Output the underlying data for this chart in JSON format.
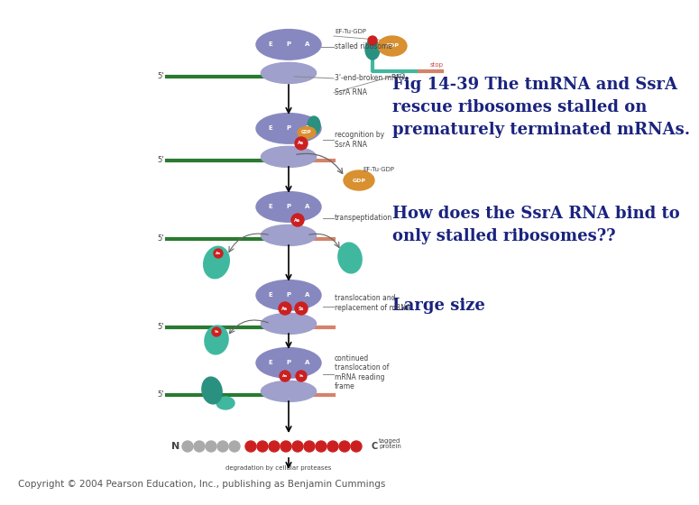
{
  "background_color": "#ffffff",
  "title_text": "Fig 14-39 The tmRNA and SsrA\nrescue ribosomes stalled on\nprematurely terminated mRNAs.",
  "question_text": "How does the SsrA RNA bind to\nonly stalled ribosomes??",
  "answer_text": "Large size",
  "copyright_text": "Copyright © 2004 Pearson Education, Inc., publishing as Benjamin Cummings",
  "title_color": "#1a237e",
  "question_color": "#1a237e",
  "answer_color": "#1a237e",
  "copyright_color": "#555555",
  "title_fontsize": 13,
  "question_fontsize": 13,
  "answer_fontsize": 13,
  "copyright_fontsize": 7.5,
  "fig_width": 7.2,
  "fig_height": 5.4
}
